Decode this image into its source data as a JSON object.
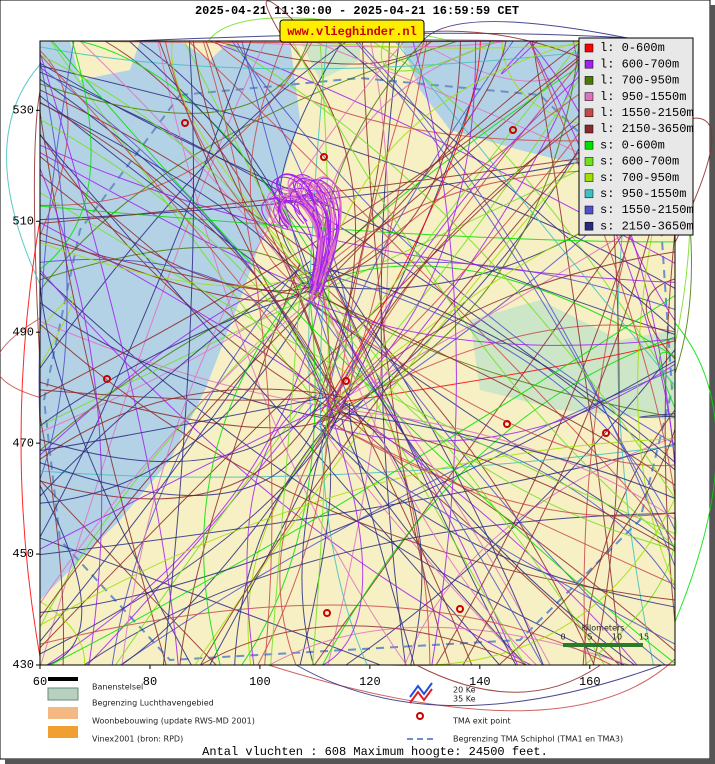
{
  "title": "2025-04-21 11:30:00 - 2025-04-21 16:59:59 CET",
  "site": "www.vlieghinder.nl",
  "axes": {
    "xlim": [
      60,
      175.5
    ],
    "xticks": [
      60,
      80,
      100,
      120,
      140,
      160
    ],
    "ylim": [
      430,
      542.5
    ],
    "yticks": [
      430,
      450,
      470,
      490,
      510,
      530
    ]
  },
  "legend": [
    {
      "label": "l: 0-600m",
      "color": "#ff0000"
    },
    {
      "label": "l: 600-700m",
      "color": "#a020f0"
    },
    {
      "label": "l: 700-950m",
      "color": "#4a7a00"
    },
    {
      "label": "l: 950-1550m",
      "color": "#e070c0"
    },
    {
      "label": "l: 1550-2150m",
      "color": "#c84848"
    },
    {
      "label": "l: 2150-3650m",
      "color": "#8b2a2a"
    },
    {
      "label": "s: 0-600m",
      "color": "#00e000"
    },
    {
      "label": "s: 600-700m",
      "color": "#70e020"
    },
    {
      "label": "s: 700-950m",
      "color": "#a0e000"
    },
    {
      "label": "s: 950-1550m",
      "color": "#40c0c0"
    },
    {
      "label": "s: 1550-2150m",
      "color": "#5050c8"
    },
    {
      "label": "s: 2150-3650m",
      "color": "#2a2a80"
    }
  ],
  "scale": {
    "label": "Kilometers",
    "ticks": [
      "0",
      "5",
      "10",
      "15"
    ]
  },
  "map_legend": [
    "Banenstelsel",
    "Begrenzing Luchthavengebied",
    "Woonbebouwing (update RWS-MD 2001)",
    "Vinex2001 (bron: RPD)",
    "20 Ke",
    "35 Ke",
    "TMA exit point",
    "Begrenzing TMA Schiphol  (TMA1 en TMA3)"
  ],
  "footer": "Antal vluchten : 608 Maximum hoogte: 24500 feet."
}
